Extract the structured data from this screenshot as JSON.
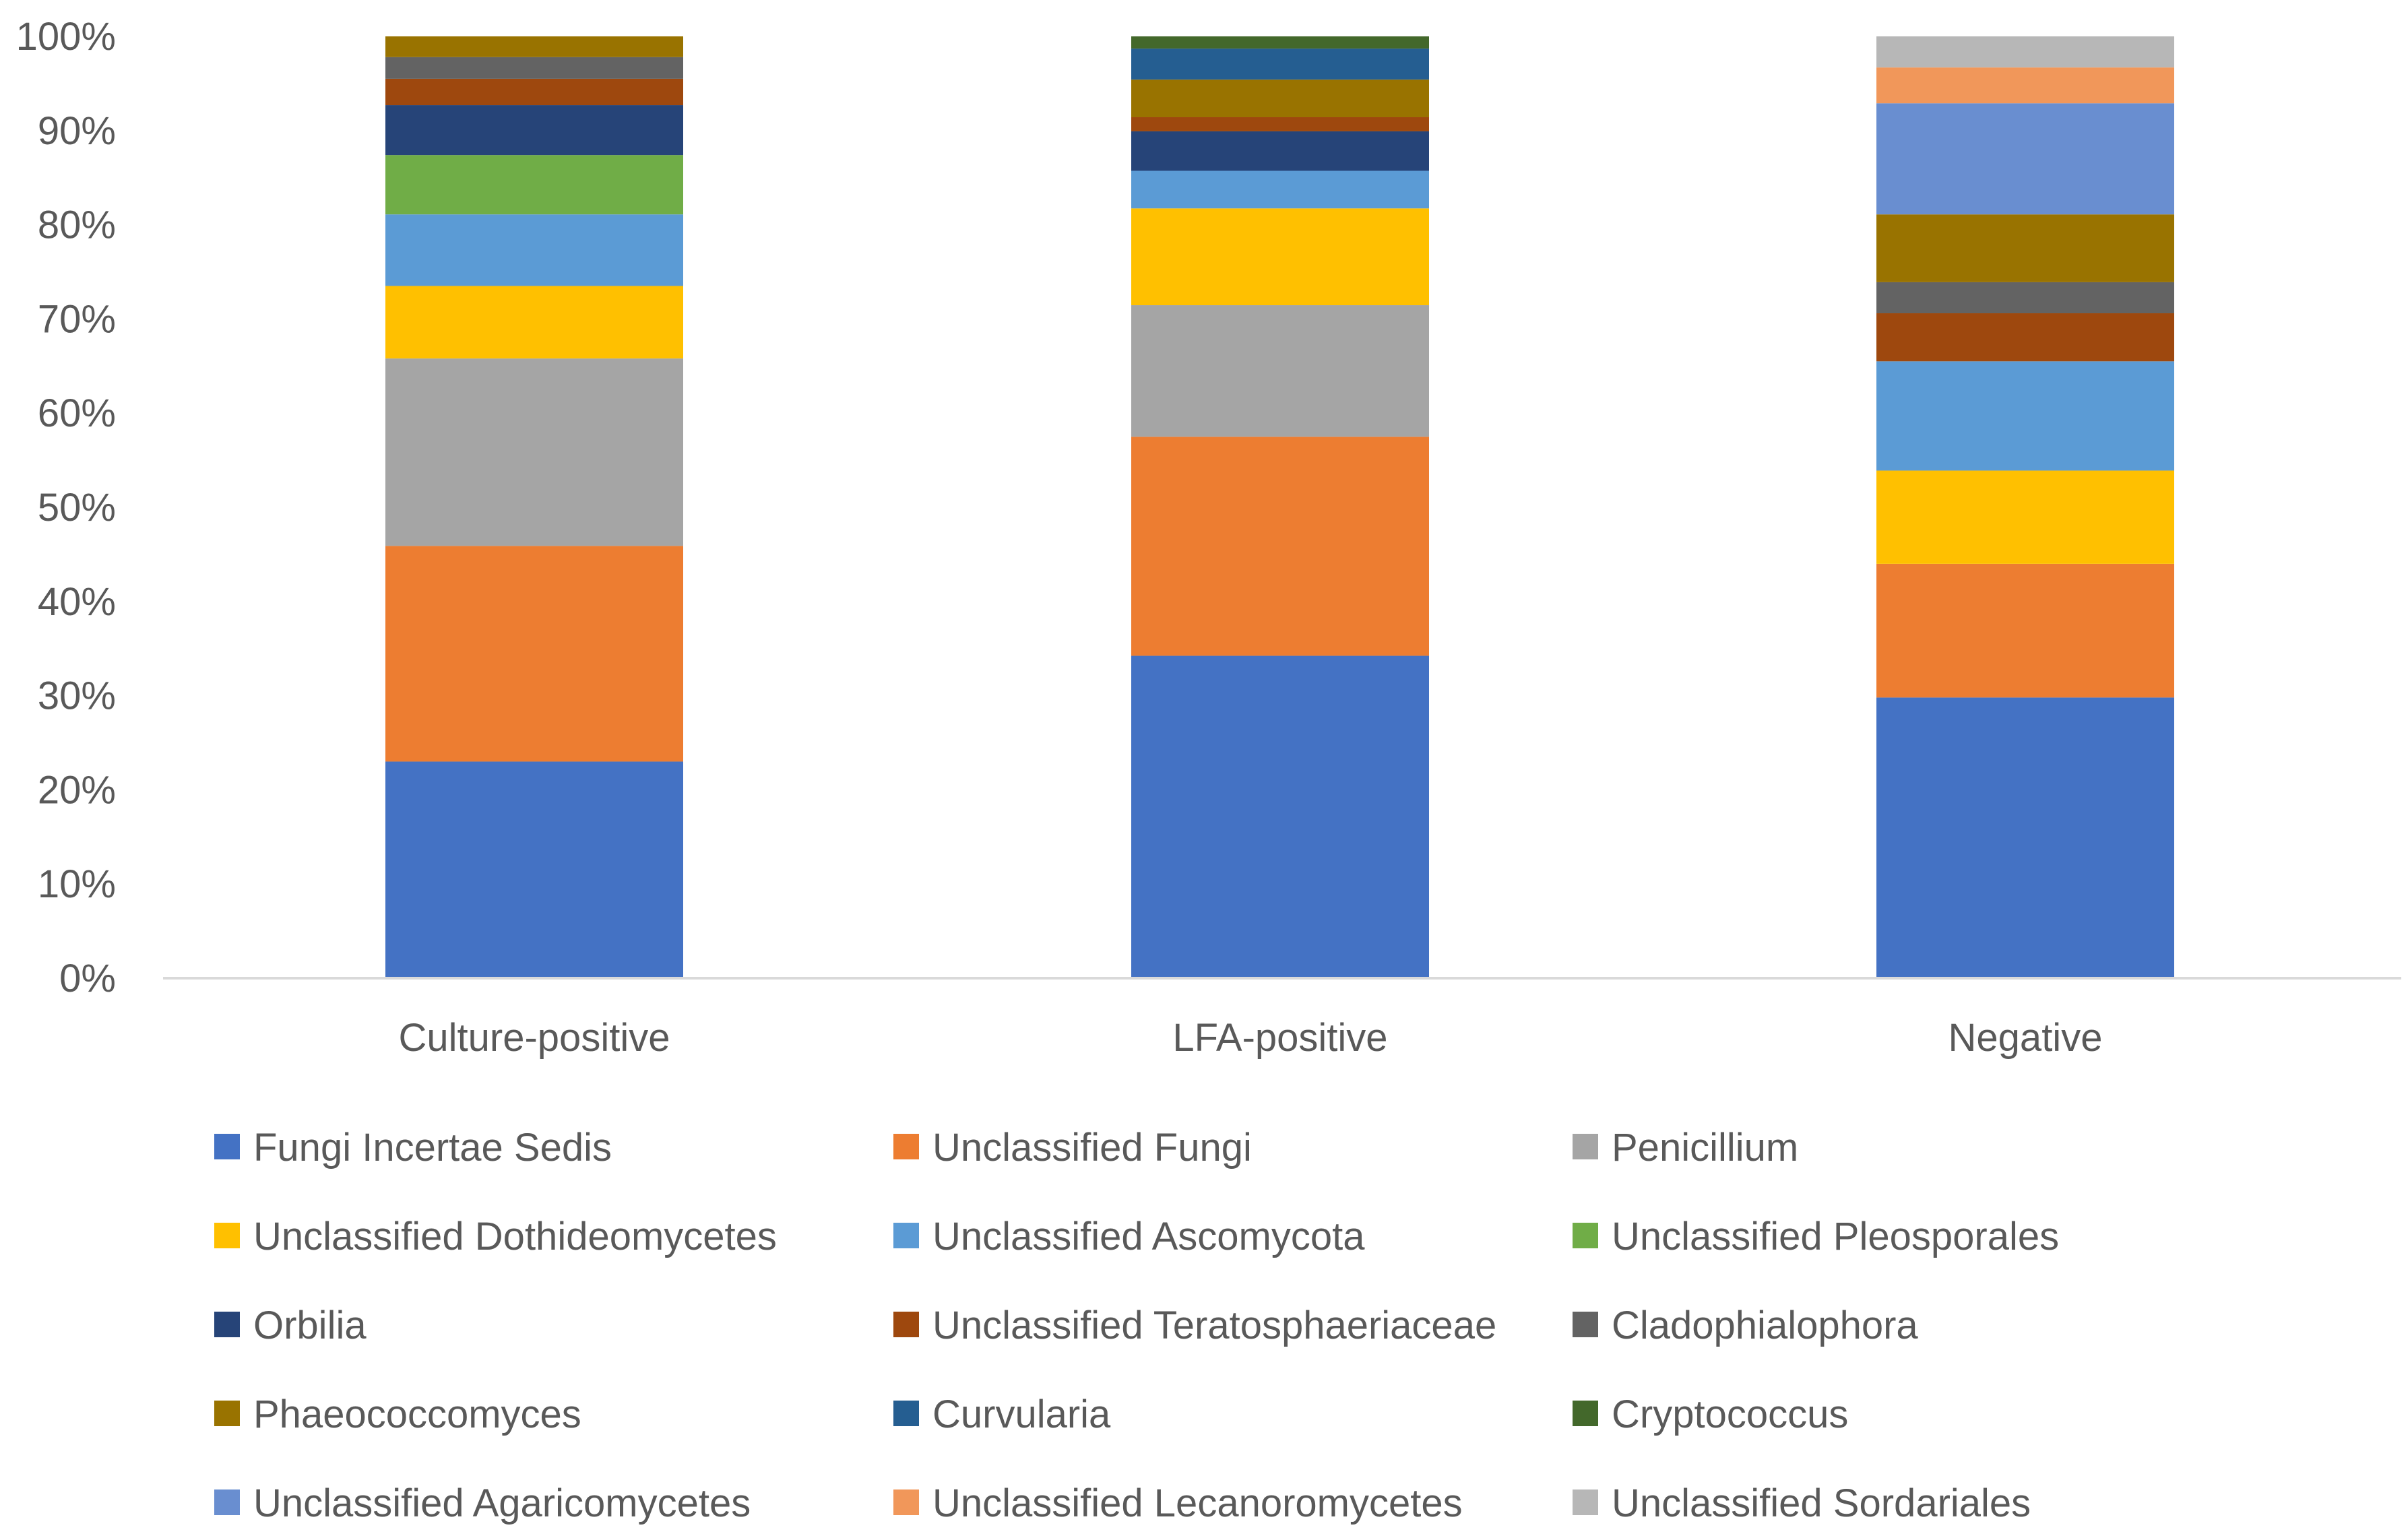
{
  "chart_data": {
    "type": "bar",
    "stacked": true,
    "percent_stacked": true,
    "title": "",
    "xlabel": "",
    "ylabel": "",
    "ylim": [
      0,
      100
    ],
    "yticks": [
      0,
      10,
      20,
      30,
      40,
      50,
      60,
      70,
      80,
      90,
      100
    ],
    "ytick_labels": [
      "0%",
      "10%",
      "20%",
      "30%",
      "40%",
      "50%",
      "60%",
      "70%",
      "80%",
      "90%",
      "100%"
    ],
    "grid": false,
    "legend_position": "bottom",
    "categories": [
      "Culture-positive",
      "LFA-positive",
      "Negative"
    ],
    "series": [
      {
        "name": "Fungi Incertae Sedis",
        "color": "#4472C4",
        "values": [
          23.0,
          34.3,
          29.8
        ]
      },
      {
        "name": "Unclassified Fungi",
        "color": "#ED7D31",
        "values": [
          22.9,
          23.3,
          14.2
        ]
      },
      {
        "name": "Penicillium",
        "color": "#A5A5A5",
        "values": [
          19.9,
          14.0,
          0
        ]
      },
      {
        "name": "Unclassified Dothideomycetes",
        "color": "#FFC000",
        "values": [
          7.7,
          10.3,
          9.9
        ]
      },
      {
        "name": "Unclassified Ascomycota",
        "color": "#5B9BD5",
        "values": [
          7.6,
          4.0,
          11.6
        ]
      },
      {
        "name": "Unclassified Pleosporales",
        "color": "#70AD47",
        "values": [
          6.3,
          0,
          0
        ]
      },
      {
        "name": "Orbilia",
        "color": "#264478",
        "values": [
          5.3,
          4.2,
          0
        ]
      },
      {
        "name": "Unclassified Teratosphaeriaceae",
        "color": "#9E480E",
        "values": [
          2.8,
          1.5,
          5.1
        ]
      },
      {
        "name": "Cladophialophora",
        "color": "#636363",
        "values": [
          2.3,
          0,
          3.3
        ]
      },
      {
        "name": "Phaeococcomyces",
        "color": "#997300",
        "values": [
          2.2,
          4.0,
          7.2
        ]
      },
      {
        "name": "Curvularia",
        "color": "#255E91",
        "values": [
          0,
          3.3,
          0
        ]
      },
      {
        "name": "Cryptococcus",
        "color": "#43682B",
        "values": [
          0,
          1.3,
          0
        ]
      },
      {
        "name": "Unclassified Agaricomycetes",
        "color": "#698ED0",
        "values": [
          0,
          0,
          11.8
        ]
      },
      {
        "name": "Unclassified Lecanoromycetes",
        "color": "#F1975A",
        "values": [
          0,
          0,
          3.8
        ]
      },
      {
        "name": "Unclassified Sordariales",
        "color": "#B7B7B7",
        "values": [
          0,
          0,
          3.3
        ]
      }
    ]
  }
}
